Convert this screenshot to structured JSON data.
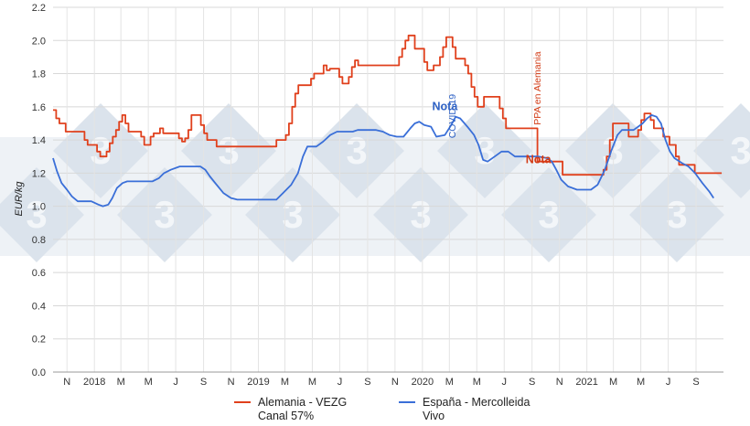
{
  "chart_data": {
    "type": "line",
    "ylabel": "EUR/kg",
    "ylim": [
      0,
      2.2
    ],
    "yticks": [
      0.0,
      0.2,
      0.4,
      0.6,
      0.8,
      1.0,
      1.2,
      1.4,
      1.6,
      1.8,
      2.0,
      2.2
    ],
    "x_range": [
      "2017-10-01",
      "2021-11-01"
    ],
    "x_ticks": [
      {
        "label": "N",
        "date": "2017-11-01"
      },
      {
        "label": "2018",
        "date": "2018-01-01"
      },
      {
        "label": "M",
        "date": "2018-03-01"
      },
      {
        "label": "M",
        "date": "2018-05-01"
      },
      {
        "label": "J",
        "date": "2018-07-01"
      },
      {
        "label": "S",
        "date": "2018-09-01"
      },
      {
        "label": "N",
        "date": "2018-11-01"
      },
      {
        "label": "2019",
        "date": "2019-01-01"
      },
      {
        "label": "M",
        "date": "2019-03-01"
      },
      {
        "label": "M",
        "date": "2019-05-01"
      },
      {
        "label": "J",
        "date": "2019-07-01"
      },
      {
        "label": "S",
        "date": "2019-09-01"
      },
      {
        "label": "N",
        "date": "2019-11-01"
      },
      {
        "label": "2020",
        "date": "2020-01-01"
      },
      {
        "label": "M",
        "date": "2020-03-01"
      },
      {
        "label": "M",
        "date": "2020-05-01"
      },
      {
        "label": "J",
        "date": "2020-07-01"
      },
      {
        "label": "S",
        "date": "2020-09-01"
      },
      {
        "label": "N",
        "date": "2020-11-01"
      },
      {
        "label": "2021",
        "date": "2021-01-01"
      },
      {
        "label": "M",
        "date": "2021-03-01"
      },
      {
        "label": "M",
        "date": "2021-05-01"
      },
      {
        "label": "J",
        "date": "2021-07-01"
      },
      {
        "label": "S",
        "date": "2021-09-01"
      }
    ],
    "grid": true,
    "legend_position": "bottom",
    "series": [
      {
        "name": "Alemania - VEZG Canal 57%",
        "color": "#e0401c",
        "step": true,
        "points": [
          [
            "2017-10-01",
            1.58
          ],
          [
            "2017-10-08",
            1.53
          ],
          [
            "2017-10-15",
            1.5
          ],
          [
            "2017-10-29",
            1.45
          ],
          [
            "2017-12-10",
            1.4
          ],
          [
            "2017-12-17",
            1.37
          ],
          [
            "2018-01-07",
            1.33
          ],
          [
            "2018-01-14",
            1.3
          ],
          [
            "2018-01-28",
            1.33
          ],
          [
            "2018-02-04",
            1.38
          ],
          [
            "2018-02-11",
            1.42
          ],
          [
            "2018-02-18",
            1.46
          ],
          [
            "2018-02-25",
            1.51
          ],
          [
            "2018-03-04",
            1.55
          ],
          [
            "2018-03-11",
            1.5
          ],
          [
            "2018-03-18",
            1.45
          ],
          [
            "2018-04-15",
            1.42
          ],
          [
            "2018-04-22",
            1.37
          ],
          [
            "2018-05-06",
            1.42
          ],
          [
            "2018-05-13",
            1.44
          ],
          [
            "2018-05-27",
            1.47
          ],
          [
            "2018-06-03",
            1.44
          ],
          [
            "2018-07-08",
            1.41
          ],
          [
            "2018-07-15",
            1.39
          ],
          [
            "2018-07-22",
            1.41
          ],
          [
            "2018-07-29",
            1.46
          ],
          [
            "2018-08-05",
            1.55
          ],
          [
            "2018-08-26",
            1.49
          ],
          [
            "2018-09-02",
            1.44
          ],
          [
            "2018-09-09",
            1.4
          ],
          [
            "2018-09-30",
            1.36
          ],
          [
            "2019-02-10",
            1.4
          ],
          [
            "2019-03-03",
            1.43
          ],
          [
            "2019-03-10",
            1.5
          ],
          [
            "2019-03-17",
            1.6
          ],
          [
            "2019-03-24",
            1.68
          ],
          [
            "2019-03-31",
            1.73
          ],
          [
            "2019-04-28",
            1.77
          ],
          [
            "2019-05-05",
            1.8
          ],
          [
            "2019-05-26",
            1.85
          ],
          [
            "2019-06-02",
            1.82
          ],
          [
            "2019-06-09",
            1.83
          ],
          [
            "2019-06-30",
            1.78
          ],
          [
            "2019-07-07",
            1.74
          ],
          [
            "2019-07-21",
            1.78
          ],
          [
            "2019-07-28",
            1.84
          ],
          [
            "2019-08-04",
            1.88
          ],
          [
            "2019-08-11",
            1.85
          ],
          [
            "2019-11-10",
            1.9
          ],
          [
            "2019-11-17",
            1.95
          ],
          [
            "2019-11-24",
            2.0
          ],
          [
            "2019-12-01",
            2.03
          ],
          [
            "2019-12-15",
            1.95
          ],
          [
            "2020-01-05",
            1.87
          ],
          [
            "2020-01-12",
            1.82
          ],
          [
            "2020-01-26",
            1.85
          ],
          [
            "2020-02-09",
            1.9
          ],
          [
            "2020-02-16",
            1.96
          ],
          [
            "2020-02-23",
            2.02
          ],
          [
            "2020-03-08",
            1.96
          ],
          [
            "2020-03-15",
            1.89
          ],
          [
            "2020-04-05",
            1.85
          ],
          [
            "2020-04-12",
            1.8
          ],
          [
            "2020-04-19",
            1.72
          ],
          [
            "2020-04-26",
            1.66
          ],
          [
            "2020-05-03",
            1.6
          ],
          [
            "2020-05-17",
            1.66
          ],
          [
            "2020-06-21",
            1.59
          ],
          [
            "2020-06-28",
            1.53
          ],
          [
            "2020-07-05",
            1.47
          ],
          [
            "2020-09-13",
            1.27
          ],
          [
            "2020-11-08",
            1.19
          ],
          [
            "2021-02-07",
            1.22
          ],
          [
            "2021-02-14",
            1.3
          ],
          [
            "2021-02-21",
            1.4
          ],
          [
            "2021-02-28",
            1.5
          ],
          [
            "2021-04-04",
            1.42
          ],
          [
            "2021-04-25",
            1.46
          ],
          [
            "2021-05-02",
            1.52
          ],
          [
            "2021-05-09",
            1.56
          ],
          [
            "2021-05-23",
            1.52
          ],
          [
            "2021-05-30",
            1.47
          ],
          [
            "2021-06-20",
            1.42
          ],
          [
            "2021-07-04",
            1.37
          ],
          [
            "2021-07-18",
            1.3
          ],
          [
            "2021-07-25",
            1.25
          ],
          [
            "2021-08-29",
            1.2
          ],
          [
            "2021-09-12",
            1.2
          ]
        ]
      },
      {
        "name": "España - Mercolleida Vivo",
        "color": "#3a6fd8",
        "step": false,
        "points": [
          [
            "2017-10-01",
            1.29
          ],
          [
            "2017-10-10",
            1.21
          ],
          [
            "2017-10-20",
            1.14
          ],
          [
            "2017-11-01",
            1.1
          ],
          [
            "2017-11-12",
            1.06
          ],
          [
            "2017-11-25",
            1.03
          ],
          [
            "2017-12-25",
            1.03
          ],
          [
            "2018-01-10",
            1.01
          ],
          [
            "2018-01-20",
            1.0
          ],
          [
            "2018-02-01",
            1.01
          ],
          [
            "2018-02-10",
            1.05
          ],
          [
            "2018-02-20",
            1.11
          ],
          [
            "2018-03-05",
            1.14
          ],
          [
            "2018-03-15",
            1.15
          ],
          [
            "2018-05-10",
            1.15
          ],
          [
            "2018-05-25",
            1.17
          ],
          [
            "2018-06-05",
            1.2
          ],
          [
            "2018-06-20",
            1.22
          ],
          [
            "2018-07-10",
            1.24
          ],
          [
            "2018-08-25",
            1.24
          ],
          [
            "2018-09-05",
            1.22
          ],
          [
            "2018-09-15",
            1.18
          ],
          [
            "2018-09-30",
            1.13
          ],
          [
            "2018-10-15",
            1.08
          ],
          [
            "2018-11-01",
            1.05
          ],
          [
            "2018-11-15",
            1.04
          ],
          [
            "2019-01-20",
            1.04
          ],
          [
            "2019-02-10",
            1.04
          ],
          [
            "2019-02-25",
            1.08
          ],
          [
            "2019-03-15",
            1.13
          ],
          [
            "2019-03-30",
            1.2
          ],
          [
            "2019-04-10",
            1.3
          ],
          [
            "2019-04-20",
            1.36
          ],
          [
            "2019-05-10",
            1.36
          ],
          [
            "2019-05-25",
            1.39
          ],
          [
            "2019-06-10",
            1.43
          ],
          [
            "2019-06-25",
            1.45
          ],
          [
            "2019-07-10",
            1.45
          ],
          [
            "2019-07-30",
            1.45
          ],
          [
            "2019-08-10",
            1.46
          ],
          [
            "2019-09-20",
            1.46
          ],
          [
            "2019-10-05",
            1.45
          ],
          [
            "2019-10-20",
            1.43
          ],
          [
            "2019-11-05",
            1.42
          ],
          [
            "2019-11-20",
            1.42
          ],
          [
            "2019-12-05",
            1.47
          ],
          [
            "2019-12-15",
            1.5
          ],
          [
            "2019-12-25",
            1.51
          ],
          [
            "2020-01-05",
            1.49
          ],
          [
            "2020-01-20",
            1.48
          ],
          [
            "2020-02-01",
            1.42
          ],
          [
            "2020-02-20",
            1.43
          ],
          [
            "2020-03-05",
            1.49
          ],
          [
            "2020-03-15",
            1.54
          ],
          [
            "2020-03-25",
            1.53
          ],
          [
            "2020-04-10",
            1.48
          ],
          [
            "2020-04-25",
            1.43
          ],
          [
            "2020-05-05",
            1.37
          ],
          [
            "2020-05-15",
            1.28
          ],
          [
            "2020-05-25",
            1.27
          ],
          [
            "2020-06-10",
            1.3
          ],
          [
            "2020-06-25",
            1.33
          ],
          [
            "2020-07-10",
            1.33
          ],
          [
            "2020-07-25",
            1.3
          ],
          [
            "2020-09-15",
            1.3
          ],
          [
            "2020-10-05",
            1.29
          ],
          [
            "2020-10-15",
            1.27
          ],
          [
            "2020-10-25",
            1.22
          ],
          [
            "2020-11-05",
            1.16
          ],
          [
            "2020-11-20",
            1.12
          ],
          [
            "2020-12-10",
            1.1
          ],
          [
            "2021-01-10",
            1.1
          ],
          [
            "2021-01-25",
            1.13
          ],
          [
            "2021-02-10",
            1.22
          ],
          [
            "2021-02-25",
            1.34
          ],
          [
            "2021-03-10",
            1.43
          ],
          [
            "2021-03-20",
            1.46
          ],
          [
            "2021-04-15",
            1.46
          ],
          [
            "2021-04-25",
            1.48
          ],
          [
            "2021-05-05",
            1.5
          ],
          [
            "2021-05-15",
            1.53
          ],
          [
            "2021-05-25",
            1.55
          ],
          [
            "2021-06-05",
            1.54
          ],
          [
            "2021-06-15",
            1.5
          ],
          [
            "2021-06-25",
            1.4
          ],
          [
            "2021-07-05",
            1.33
          ],
          [
            "2021-07-15",
            1.29
          ],
          [
            "2021-08-01",
            1.26
          ],
          [
            "2021-08-15",
            1.24
          ],
          [
            "2021-08-30",
            1.2
          ],
          [
            "2021-09-15",
            1.14
          ],
          [
            "2021-09-30",
            1.09
          ],
          [
            "2021-10-10",
            1.05
          ]
        ]
      }
    ],
    "annotations": [
      {
        "text": "Nota",
        "color": "#2f62c5",
        "bold": true,
        "date": "2020-02-20",
        "y": 1.58
      },
      {
        "text": "COVID-19",
        "color": "#2f62c5",
        "rotated": true,
        "date": "2020-03-15",
        "y": 1.41
      },
      {
        "text": "Nota",
        "color": "#d23a14",
        "bold": true,
        "date": "2020-09-15",
        "y": 1.26
      },
      {
        "text": "PPA en Alemania",
        "color": "#d23a14",
        "rotated": true,
        "date": "2020-09-20",
        "y": 1.49
      }
    ]
  },
  "legend": {
    "items": [
      {
        "line1": "Alemania - VEZG",
        "line2": "Canal 57%",
        "color": "#e0401c"
      },
      {
        "line1": "España - Mercolleida",
        "line2": "Vivo",
        "color": "#3a6fd8"
      }
    ]
  }
}
